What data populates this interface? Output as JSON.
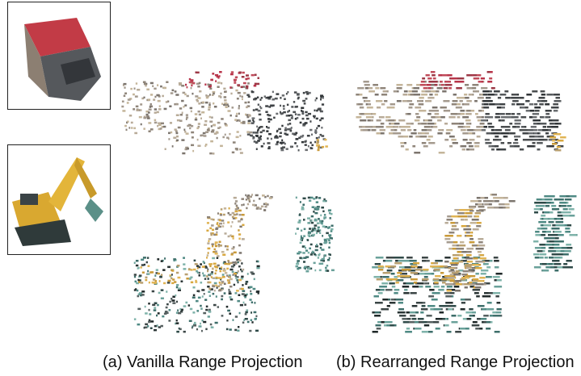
{
  "captions": {
    "a": "(a) Vanilla Range Projection",
    "b": "(b) Rearranged Range Projection"
  }
}
